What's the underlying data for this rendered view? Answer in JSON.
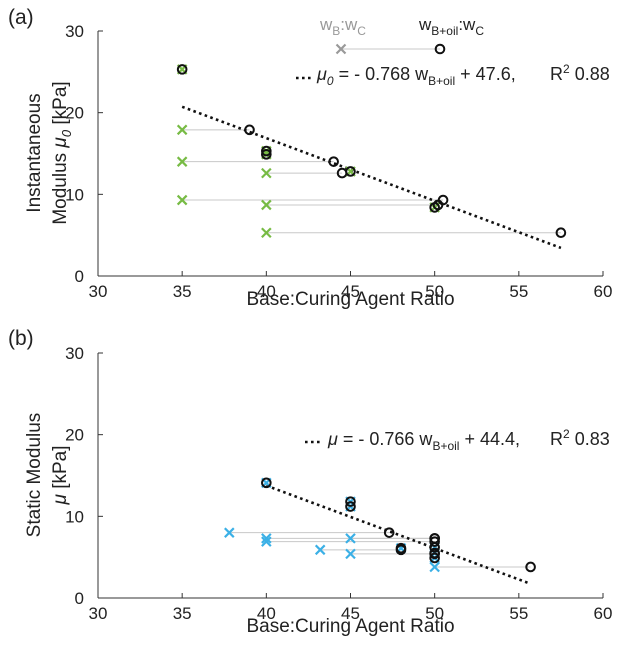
{
  "chart_data": [
    {
      "type": "scatter",
      "panel_label": "(a)",
      "xlabel": "Base:Curing Agent Ratio",
      "ylabel_line1": "Instantaneous",
      "ylabel_line2_prefix": "Modulus ",
      "ylabel_line2_symbol": "μ",
      "ylabel_line2_sub": "0",
      "ylabel_line2_suffix": "  [kPa]",
      "xlim": [
        30,
        60
      ],
      "ylim": [
        0,
        30
      ],
      "xticks": [
        "30",
        "35",
        "40",
        "45",
        "50",
        "55",
        "60"
      ],
      "yticks": [
        "0",
        "10",
        "20",
        "30"
      ],
      "legend": {
        "item1_main": "w",
        "item1_sub1": "B",
        "item1_mid": ":w",
        "item1_sub2": "C",
        "item2_main": "w",
        "item2_sub1": "B+oil",
        "item2_mid": ":w",
        "item2_sub2": "C"
      },
      "fit": {
        "symbol": "μ",
        "symbol_sub": "0",
        "eq_mid": " = - 0.768 w",
        "eq_sub": "B+oil",
        "eq_end": " + 47.6,",
        "r2_label": "R",
        "r2_sup": "2",
        "r2_value": "0.88",
        "slope": -0.768,
        "intercept": 47.6,
        "x_range": [
          35,
          57.5
        ]
      },
      "marker_color": "#77bb44",
      "pairs": [
        {
          "wb": 35,
          "wboil": 35,
          "y": 25.3
        },
        {
          "wb": 35,
          "wboil": 39,
          "y": 17.9
        },
        {
          "wb": 35,
          "wboil": 44,
          "y": 14.0
        },
        {
          "wb": 35,
          "wboil": 50.5,
          "y": 9.3
        },
        {
          "wb": 40,
          "wboil": 40,
          "y": 15.3
        },
        {
          "wb": 40,
          "wboil": 40,
          "y": 14.9
        },
        {
          "wb": 40,
          "wboil": 44.5,
          "y": 12.6
        },
        {
          "wb": 40,
          "wboil": 50.2,
          "y": 8.7
        },
        {
          "wb": 40,
          "wboil": 57.5,
          "y": 5.3
        },
        {
          "wb": 45,
          "wboil": 45,
          "y": 12.8
        },
        {
          "wb": 50,
          "wboil": 50,
          "y": 8.4
        }
      ]
    },
    {
      "type": "scatter",
      "panel_label": "(b)",
      "xlabel": "Base:Curing Agent Ratio",
      "ylabel_line1": "Static Modulus",
      "ylabel_line2_prefix": "",
      "ylabel_line2_symbol": "μ",
      "ylabel_line2_sub": "",
      "ylabel_line2_suffix": " [kPa]",
      "xlim": [
        30,
        60
      ],
      "ylim": [
        0,
        30
      ],
      "xticks": [
        "30",
        "35",
        "40",
        "45",
        "50",
        "55",
        "60"
      ],
      "yticks": [
        "0",
        "10",
        "20",
        "30"
      ],
      "fit": {
        "symbol": "μ",
        "symbol_sub": "",
        "eq_mid": " = - 0.766 w",
        "eq_sub": "B+oil",
        "eq_end": " + 44.4,",
        "r2_label": "R",
        "r2_sup": "2",
        "r2_value": "0.83",
        "slope": -0.766,
        "intercept": 44.4,
        "x_range": [
          40,
          55.7
        ]
      },
      "marker_color": "#3bb0e6",
      "pairs": [
        {
          "wb": 40,
          "wboil": 40,
          "y": 14.1
        },
        {
          "wb": 45,
          "wboil": 45,
          "y": 11.8
        },
        {
          "wb": 45,
          "wboil": 45,
          "y": 11.2
        },
        {
          "wb": 37.8,
          "wboil": 47.3,
          "y": 8.0
        },
        {
          "wb": 40,
          "wboil": 50,
          "y": 7.3
        },
        {
          "wb": 40,
          "wboil": 50,
          "y": 6.9
        },
        {
          "wb": 45,
          "wboil": 50,
          "y": 7.3
        },
        {
          "wb": 43.2,
          "wboil": 48,
          "y": 5.9
        },
        {
          "wb": 45,
          "wboil": 50,
          "y": 5.4
        },
        {
          "wb": 48,
          "wboil": 48,
          "y": 6.1
        },
        {
          "wb": 50,
          "wboil": 50,
          "y": 6.2
        },
        {
          "wb": 50,
          "wboil": 50,
          "y": 5.5
        },
        {
          "wb": 50,
          "wboil": 50,
          "y": 4.9
        },
        {
          "wb": 50,
          "wboil": 55.7,
          "y": 3.8
        }
      ]
    }
  ]
}
